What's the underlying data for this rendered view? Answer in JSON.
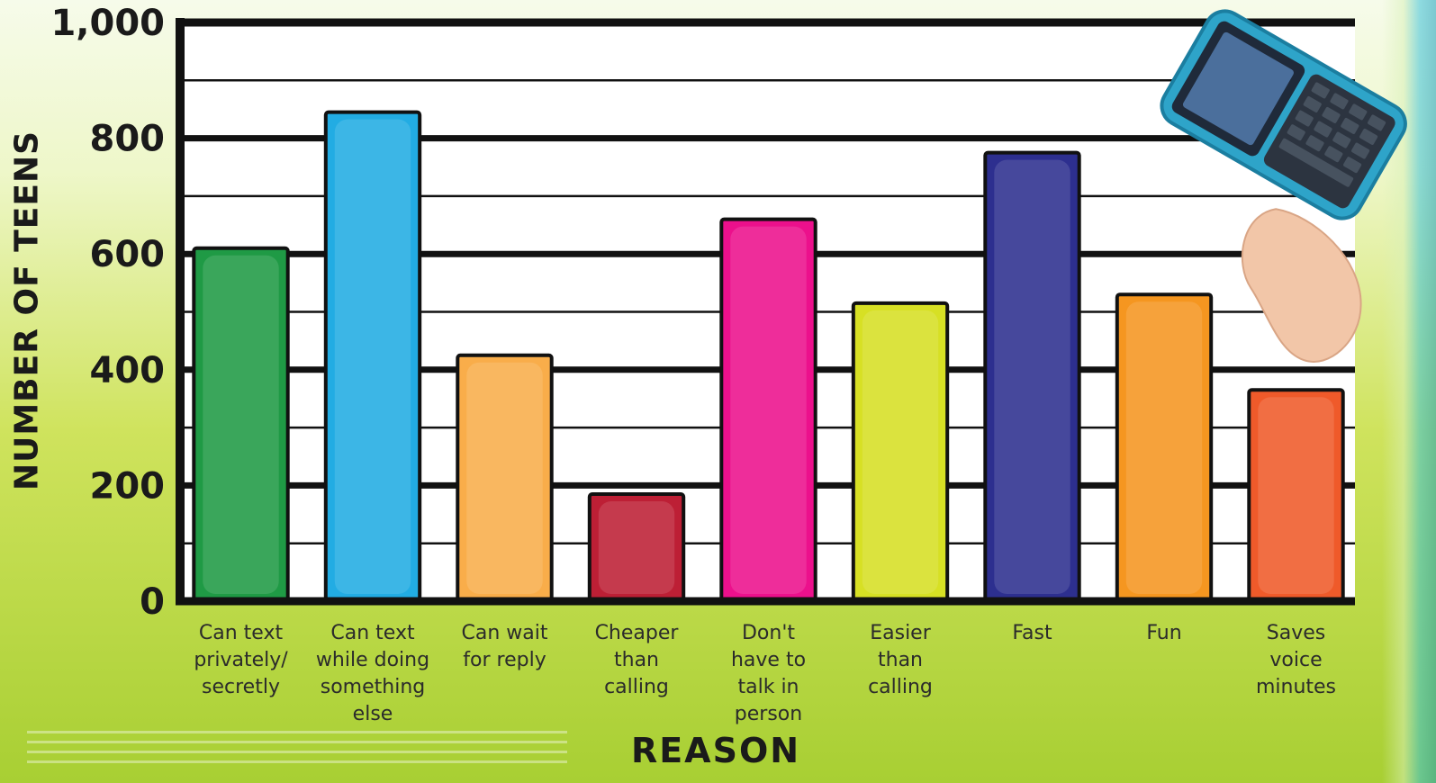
{
  "chart_data": {
    "type": "bar",
    "title": "",
    "xlabel": "REASON",
    "ylabel": "NUMBER OF TEENS",
    "ylim": [
      0,
      1000
    ],
    "yticks": [
      "0",
      "200",
      "400",
      "600",
      "800",
      "1,000"
    ],
    "grid": true,
    "categories": [
      [
        "Can text",
        "privately/",
        "secretly"
      ],
      [
        "Can text",
        "while doing",
        "something",
        "else"
      ],
      [
        "Can wait",
        "for reply"
      ],
      [
        "Cheaper",
        "than",
        "calling"
      ],
      [
        "Don't",
        "have to",
        "talk in",
        "person"
      ],
      [
        "Easier",
        "than",
        "calling"
      ],
      [
        "Fast"
      ],
      [
        "Fun"
      ],
      [
        "Saves",
        "voice",
        "minutes"
      ]
    ],
    "values": [
      610,
      845,
      425,
      185,
      660,
      515,
      775,
      530,
      365
    ],
    "bar_colors": [
      "#1f9a45",
      "#22ace3",
      "#f9ad4a",
      "#bd1f35",
      "#ec108c",
      "#d7e024",
      "#2d2f8f",
      "#f59620",
      "#ef5a2a"
    ]
  }
}
